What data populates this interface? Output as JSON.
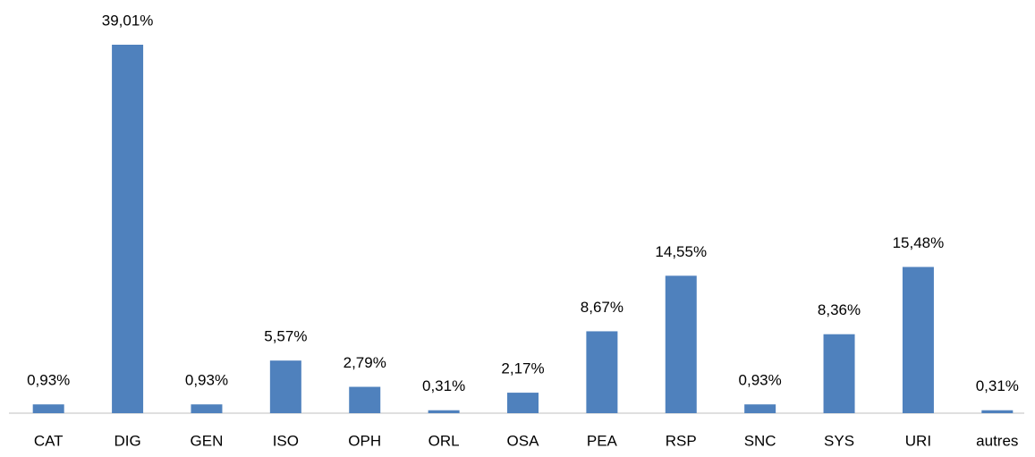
{
  "chart_data": {
    "type": "bar",
    "categories": [
      "CAT",
      "DIG",
      "GEN",
      "ISO",
      "OPH",
      "ORL",
      "OSA",
      "PEA",
      "RSP",
      "SNC",
      "SYS",
      "URI",
      "autres"
    ],
    "values": [
      0.93,
      39.01,
      0.93,
      5.57,
      2.79,
      0.31,
      2.17,
      8.67,
      14.55,
      0.93,
      8.36,
      15.48,
      0.31
    ],
    "value_labels": [
      "0,93%",
      "39,01%",
      "0,93%",
      "5,57%",
      "2,79%",
      "0,31%",
      "2,17%",
      "8,67%",
      "14,55%",
      "0,93%",
      "8,36%",
      "15,48%",
      "0,31%"
    ],
    "color": "#4f81bd"
  }
}
